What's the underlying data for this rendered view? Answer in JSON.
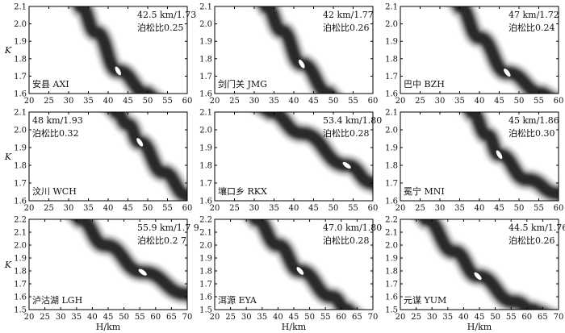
{
  "colors": {
    "band": "#111111",
    "ellipse": "#ffffff",
    "frame": "#000000"
  },
  "chart_data": [
    {
      "type": "heatmap",
      "station": "安县 AXI",
      "estimate": "42.5 km/1.73",
      "poisson": "泊松比0.25",
      "xlabel": "",
      "ylabel": "K",
      "xlim": [
        20,
        60
      ],
      "ylim": [
        1.6,
        2.1
      ],
      "xticks": [
        "20",
        "25",
        "30",
        "35",
        "40",
        "45",
        "50",
        "55",
        "60"
      ],
      "yticks": [
        "1.6",
        "1.7",
        "1.8",
        "1.9",
        "2.0",
        "2.1"
      ],
      "best": {
        "H": 42.5,
        "K": 1.73
      },
      "band": [
        [
          33,
          2.1
        ],
        [
          37,
          1.95
        ],
        [
          42.5,
          1.73
        ],
        [
          50,
          1.6
        ]
      ]
    },
    {
      "type": "heatmap",
      "station": "剑门关 JMG",
      "estimate": "42 km/1.77",
      "poisson": "泊松比0.26",
      "xlabel": "",
      "ylabel": "",
      "xlim": [
        20,
        60
      ],
      "ylim": [
        1.6,
        2.1
      ],
      "xticks": [
        "20",
        "25",
        "30",
        "35",
        "40",
        "45",
        "50",
        "55",
        "60"
      ],
      "yticks": [
        "1.6",
        "1.7",
        "1.8",
        "1.9",
        "2.0",
        "2.1"
      ],
      "best": {
        "H": 42,
        "K": 1.77
      },
      "band": [
        [
          33,
          2.1
        ],
        [
          37,
          1.96
        ],
        [
          42,
          1.77
        ],
        [
          49,
          1.6
        ]
      ]
    },
    {
      "type": "heatmap",
      "station": "巴中 BZH",
      "estimate": "47 km/1.72",
      "poisson": "泊松比0.24",
      "xlabel": "",
      "ylabel": "",
      "xlim": [
        20,
        60
      ],
      "ylim": [
        1.6,
        2.1
      ],
      "xticks": [
        "20",
        "25",
        "30",
        "35",
        "40",
        "45",
        "50",
        "55",
        "60"
      ],
      "yticks": [
        "1.6",
        "1.7",
        "1.8",
        "1.9",
        "2.0",
        "2.1"
      ],
      "best": {
        "H": 47,
        "K": 1.72
      },
      "band": [
        [
          35,
          2.1
        ],
        [
          40,
          1.92
        ],
        [
          47,
          1.72
        ],
        [
          56,
          1.6
        ]
      ]
    },
    {
      "type": "heatmap",
      "station": "汶川 WCH",
      "estimate": "48 km/1.93",
      "poisson": "泊松比0.32",
      "xlabel": "",
      "ylabel": "K",
      "xlim": [
        20,
        60
      ],
      "ylim": [
        1.6,
        2.1
      ],
      "xticks": [
        "20",
        "25",
        "30",
        "35",
        "40",
        "45",
        "50",
        "55",
        "60"
      ],
      "yticks": [
        "1.6",
        "1.7",
        "1.8",
        "1.9",
        "2.0",
        "2.1"
      ],
      "best": {
        "H": 48,
        "K": 1.93
      },
      "band": [
        [
          42,
          2.1
        ],
        [
          45,
          2.03
        ],
        [
          48,
          1.93
        ],
        [
          54,
          1.76
        ],
        [
          60,
          1.63
        ]
      ]
    },
    {
      "type": "heatmap",
      "station": "壤口乡 RKX",
      "estimate": "53.4 km/1.80",
      "poisson": "泊松比0.28",
      "xlabel": "",
      "ylabel": "",
      "xlim": [
        20,
        60
      ],
      "ylim": [
        1.6,
        2.1
      ],
      "xticks": [
        "20",
        "25",
        "30",
        "35",
        "40",
        "45",
        "50",
        "55",
        "60"
      ],
      "yticks": [
        "1.6",
        "1.7",
        "1.8",
        "1.9",
        "2.0",
        "2.1"
      ],
      "best": {
        "H": 53.4,
        "K": 1.8
      },
      "band": [
        [
          34,
          2.1
        ],
        [
          42,
          1.98
        ],
        [
          53.4,
          1.8
        ],
        [
          60,
          1.7
        ]
      ]
    },
    {
      "type": "heatmap",
      "station": "冕宁 MNI",
      "estimate": "45 km/1.86",
      "poisson": "泊松比0.30",
      "xlabel": "",
      "ylabel": "",
      "xlim": [
        20,
        60
      ],
      "ylim": [
        1.6,
        2.1
      ],
      "xticks": [
        "20",
        "25",
        "30",
        "35",
        "40",
        "45",
        "50",
        "55",
        "60"
      ],
      "yticks": [
        "1.6",
        "1.7",
        "1.8",
        "1.9",
        "2.0",
        "2.1"
      ],
      "best": {
        "H": 45,
        "K": 1.86
      },
      "band": [
        [
          38,
          2.1
        ],
        [
          42,
          1.97
        ],
        [
          45,
          1.86
        ],
        [
          52,
          1.72
        ],
        [
          60,
          1.64
        ]
      ]
    },
    {
      "type": "heatmap",
      "station": "泸沽湖 LGH",
      "estimate": "55.9 km/1.7 9",
      "poisson": "泊松比0.2 7",
      "xlabel": "H/km",
      "ylabel": "K",
      "xlim": [
        20,
        70
      ],
      "ylim": [
        1.5,
        2.2
      ],
      "xticks": [
        "20",
        "25",
        "30",
        "35",
        "40",
        "45",
        "50",
        "55",
        "60",
        "65",
        "70"
      ],
      "yticks": [
        "1.5",
        "1.6",
        "1.7",
        "1.8",
        "1.9",
        "2.0",
        "2.1",
        "2.2"
      ],
      "best": {
        "H": 55.9,
        "K": 1.79
      },
      "band": [
        [
          36,
          2.2
        ],
        [
          44,
          2.0
        ],
        [
          55.9,
          1.79
        ],
        [
          70,
          1.62
        ]
      ]
    },
    {
      "type": "heatmap",
      "station": "洱源 EYA",
      "estimate": "47.0 km/1.80",
      "poisson": "泊松比0.28",
      "xlabel": "H/km",
      "ylabel": "",
      "xlim": [
        20,
        70
      ],
      "ylim": [
        1.5,
        2.2
      ],
      "xticks": [
        "20",
        "25",
        "30",
        "35",
        "40",
        "45",
        "50",
        "55",
        "60",
        "65",
        "70"
      ],
      "yticks": [
        "1.5",
        "1.6",
        "1.7",
        "1.8",
        "1.9",
        "2.0",
        "2.1",
        "2.2"
      ],
      "best": {
        "H": 47,
        "K": 1.8
      },
      "band": [
        [
          33,
          2.2
        ],
        [
          40,
          2.0
        ],
        [
          47,
          1.8
        ],
        [
          57,
          1.6
        ],
        [
          62,
          1.5
        ]
      ]
    },
    {
      "type": "heatmap",
      "station": "元谋 YUM",
      "estimate": "44.5 km/1.76",
      "poisson": "泊松比0.26",
      "xlabel": "H/km",
      "ylabel": "",
      "xlim": [
        20,
        70
      ],
      "ylim": [
        1.5,
        2.2
      ],
      "xticks": [
        "20",
        "25",
        "30",
        "35",
        "40",
        "45",
        "50",
        "55",
        "60",
        "65",
        "70"
      ],
      "yticks": [
        "1.5",
        "1.6",
        "1.7",
        "1.8",
        "1.9",
        "2.0",
        "2.1",
        "2.2"
      ],
      "best": {
        "H": 44.5,
        "K": 1.76
      },
      "band": [
        [
          28,
          2.2
        ],
        [
          37,
          1.95
        ],
        [
          44.5,
          1.76
        ],
        [
          56,
          1.56
        ],
        [
          62,
          1.5
        ]
      ]
    }
  ]
}
